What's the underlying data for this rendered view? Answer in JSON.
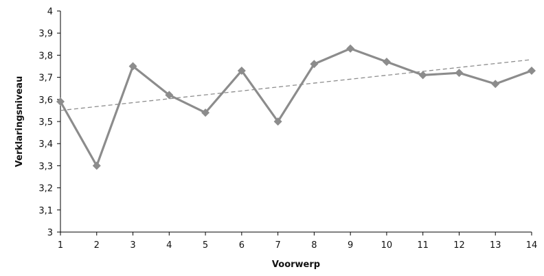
{
  "chart_data": {
    "type": "line",
    "title": "",
    "xlabel": "Voorwerp",
    "ylabel": "Verklaringsniveau",
    "x": [
      1,
      2,
      3,
      4,
      5,
      6,
      7,
      8,
      9,
      10,
      11,
      12,
      13,
      14
    ],
    "x_tick_labels": [
      "1",
      "2",
      "3",
      "4",
      "5",
      "6",
      "7",
      "8",
      "9",
      "10",
      "11",
      "12",
      "13",
      "14"
    ],
    "y_tick_labels": [
      "3",
      "3,1",
      "3,2",
      "3,3",
      "3,4",
      "3,5",
      "3,6",
      "3,7",
      "3,8",
      "3,9",
      "4"
    ],
    "y_ticks": [
      3,
      3.1,
      3.2,
      3.3,
      3.4,
      3.5,
      3.6,
      3.7,
      3.8,
      3.9,
      4
    ],
    "ylim": [
      3,
      4
    ],
    "xlim": [
      1,
      14
    ],
    "grid": false,
    "legend": "none",
    "series": [
      {
        "values": [
          3.59,
          3.3,
          3.75,
          3.62,
          3.54,
          3.73,
          3.5,
          3.76,
          3.83,
          3.77,
          3.71,
          3.72,
          3.67,
          3.73
        ],
        "color": "#8c8c8c",
        "marker": "diamond",
        "style": "solid"
      }
    ],
    "trendline": {
      "type": "linear",
      "start": [
        1,
        3.55
      ],
      "end": [
        14,
        3.78
      ],
      "color": "#8c8c8c",
      "style": "dashed"
    }
  }
}
